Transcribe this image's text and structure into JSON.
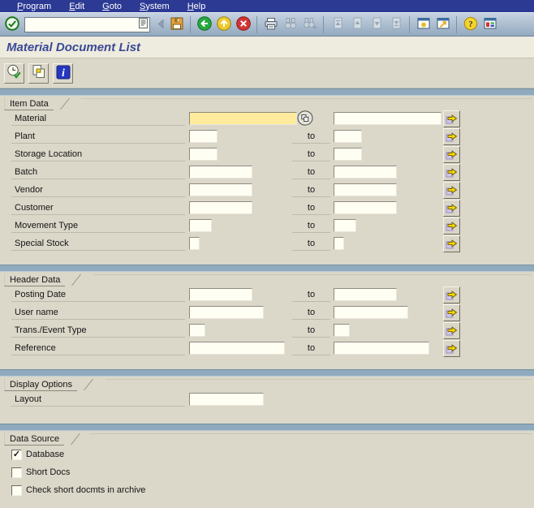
{
  "window": {
    "title": "Material Document List"
  },
  "menu_bar": {
    "items": [
      {
        "label": "Program"
      },
      {
        "label": "Edit"
      },
      {
        "label": "Goto"
      },
      {
        "label": "System"
      },
      {
        "label": "Help"
      }
    ]
  },
  "toolbar": {
    "command_field": {
      "value": ""
    },
    "buttons": [
      {
        "name": "enter-button",
        "icon": "check-circle-icon",
        "disabled": false
      },
      {
        "name": "hide-command-field-button",
        "icon": "chevron-left-icon",
        "disabled": false
      },
      {
        "name": "save-button",
        "icon": "save-disk-icon",
        "disabled": false
      },
      {
        "name": "back-button",
        "icon": "back-arrow-icon",
        "disabled": false
      },
      {
        "name": "exit-button",
        "icon": "exit-up-arrow-icon",
        "disabled": false
      },
      {
        "name": "cancel-button",
        "icon": "cancel-x-icon",
        "disabled": false
      },
      {
        "name": "print-button",
        "icon": "printer-icon",
        "disabled": false
      },
      {
        "name": "find-button",
        "icon": "binoculars-icon",
        "disabled": true
      },
      {
        "name": "find-next-button",
        "icon": "binoculars-plus-icon",
        "disabled": true
      },
      {
        "name": "first-page-button",
        "icon": "page-first-icon",
        "disabled": true
      },
      {
        "name": "previous-page-button",
        "icon": "page-up-icon",
        "disabled": true
      },
      {
        "name": "next-page-button",
        "icon": "page-down-icon",
        "disabled": true
      },
      {
        "name": "last-page-button",
        "icon": "page-last-icon",
        "disabled": true
      },
      {
        "name": "new-session-button",
        "icon": "new-session-icon",
        "disabled": false
      },
      {
        "name": "create-shortcut-button",
        "icon": "shortcut-icon",
        "disabled": false
      },
      {
        "name": "help-button",
        "icon": "question-mark-icon",
        "disabled": false
      },
      {
        "name": "customize-layout-button",
        "icon": "layout-icon",
        "disabled": false
      }
    ]
  },
  "app_toolbar": {
    "buttons": [
      {
        "name": "execute-button",
        "icon": "clock-check-icon"
      },
      {
        "name": "get-variant-button",
        "icon": "get-variant-icon"
      },
      {
        "name": "info-button",
        "icon": "information-icon"
      }
    ]
  },
  "labels": {
    "range_to": "to"
  },
  "sections": {
    "item_data": {
      "title": "Item Data",
      "rows": [
        {
          "label": "Material",
          "from_value": "",
          "to_value": ""
        },
        {
          "label": "Plant",
          "from_value": "",
          "to_value": ""
        },
        {
          "label": "Storage Location",
          "from_value": "",
          "to_value": ""
        },
        {
          "label": "Batch",
          "from_value": "",
          "to_value": ""
        },
        {
          "label": "Vendor",
          "from_value": "",
          "to_value": ""
        },
        {
          "label": "Customer",
          "from_value": "",
          "to_value": ""
        },
        {
          "label": "Movement Type",
          "from_value": "",
          "to_value": ""
        },
        {
          "label": "Special Stock",
          "from_value": "",
          "to_value": ""
        }
      ]
    },
    "header_data": {
      "title": "Header Data",
      "rows": [
        {
          "label": "Posting Date",
          "from_value": "",
          "to_value": ""
        },
        {
          "label": "User name",
          "from_value": "",
          "to_value": ""
        },
        {
          "label": "Trans./Event Type",
          "from_value": "",
          "to_value": ""
        },
        {
          "label": "Reference",
          "from_value": "",
          "to_value": ""
        }
      ]
    },
    "display_options": {
      "title": "Display Options",
      "rows": [
        {
          "label": "Layout",
          "value": ""
        }
      ]
    },
    "data_source": {
      "title": "Data Source",
      "checkboxes": [
        {
          "label": "Database",
          "checked": true,
          "check_glyph": "✓"
        },
        {
          "label": "Short Docs",
          "checked": false,
          "check_glyph": ""
        },
        {
          "label": "Check short docmts in archive",
          "checked": false,
          "check_glyph": ""
        }
      ]
    }
  },
  "colors": {
    "menu_bar_bg": "#2c3a94",
    "toolbar_bg": "#a9bccd",
    "separator_bar": "#8fa9bd",
    "content_bg": "#dbd7c9",
    "title_text": "#3a4a94",
    "input_bg": "#fffef2",
    "focused_field_bg": "#ffeb9c"
  }
}
